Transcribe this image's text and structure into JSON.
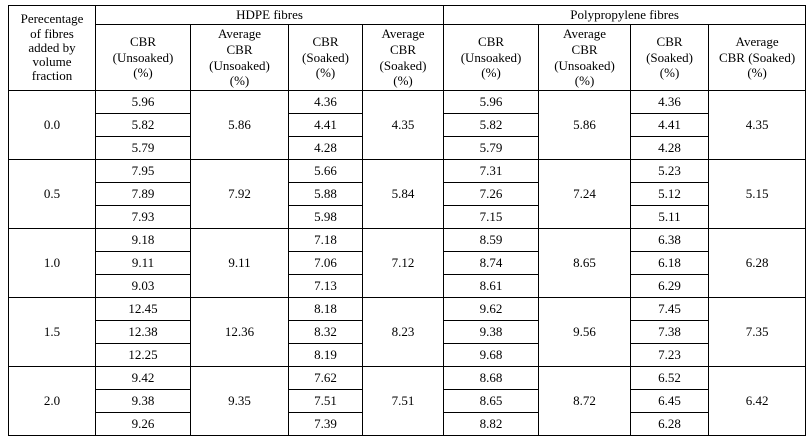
{
  "table": {
    "corner_header": [
      "Perecentage",
      "of fibres",
      "added by",
      "volume",
      "fraction"
    ],
    "group_headers": [
      "HDPE fibres",
      "Polypropylene fibres"
    ],
    "sub_headers": [
      [
        "CBR",
        "(Unsoaked)",
        "(%)"
      ],
      [
        "Average",
        "CBR",
        "(Unsoaked)",
        "(%)"
      ],
      [
        "CBR",
        "(Soaked)",
        "(%)"
      ],
      [
        "Average",
        "CBR",
        "(Soaked)",
        "(%)"
      ],
      [
        "CBR",
        "(Unsoaked)",
        "(%)"
      ],
      [
        "Average",
        "CBR",
        "(Unsoaked)",
        "(%)"
      ],
      [
        "CBR",
        "(Soaked)",
        "(%)"
      ],
      [
        "Average",
        "CBR (Soaked)",
        "(%)"
      ]
    ],
    "rows": [
      {
        "percentage": "0.0",
        "hdpe": {
          "unsoaked": [
            "5.96",
            "5.82",
            "5.79"
          ],
          "avg_unsoaked": "5.86",
          "soaked": [
            "4.36",
            "4.41",
            "4.28"
          ],
          "avg_soaked": "4.35"
        },
        "pp": {
          "unsoaked": [
            "5.96",
            "5.82",
            "5.79"
          ],
          "avg_unsoaked": "5.86",
          "soaked": [
            "4.36",
            "4.41",
            "4.28"
          ],
          "avg_soaked": "4.35"
        }
      },
      {
        "percentage": "0.5",
        "hdpe": {
          "unsoaked": [
            "7.95",
            "7.89",
            "7.93"
          ],
          "avg_unsoaked": "7.92",
          "soaked": [
            "5.66",
            "5.88",
            "5.98"
          ],
          "avg_soaked": "5.84"
        },
        "pp": {
          "unsoaked": [
            "7.31",
            "7.26",
            "7.15"
          ],
          "avg_unsoaked": "7.24",
          "soaked": [
            "5.23",
            "5.12",
            "5.11"
          ],
          "avg_soaked": "5.15"
        }
      },
      {
        "percentage": "1.0",
        "hdpe": {
          "unsoaked": [
            "9.18",
            "9.11",
            "9.03"
          ],
          "avg_unsoaked": "9.11",
          "soaked": [
            "7.18",
            "7.06",
            "7.13"
          ],
          "avg_soaked": "7.12"
        },
        "pp": {
          "unsoaked": [
            "8.59",
            "8.74",
            "8.61"
          ],
          "avg_unsoaked": "8.65",
          "soaked": [
            "6.38",
            "6.18",
            "6.29"
          ],
          "avg_soaked": "6.28"
        }
      },
      {
        "percentage": "1.5",
        "hdpe": {
          "unsoaked": [
            "12.45",
            "12.38",
            "12.25"
          ],
          "avg_unsoaked": "12.36",
          "soaked": [
            "8.18",
            "8.32",
            "8.19"
          ],
          "avg_soaked": "8.23"
        },
        "pp": {
          "unsoaked": [
            "9.62",
            "9.38",
            "9.68"
          ],
          "avg_unsoaked": "9.56",
          "soaked": [
            "7.45",
            "7.38",
            "7.23"
          ],
          "avg_soaked": "7.35"
        }
      },
      {
        "percentage": "2.0",
        "hdpe": {
          "unsoaked": [
            "9.42",
            "9.38",
            "9.26"
          ],
          "avg_unsoaked": "9.35",
          "soaked": [
            "7.62",
            "7.51",
            "7.39"
          ],
          "avg_soaked": "7.51"
        },
        "pp": {
          "unsoaked": [
            "8.68",
            "8.65",
            "8.82"
          ],
          "avg_unsoaked": "8.72",
          "soaked": [
            "6.52",
            "6.45",
            "6.28"
          ],
          "avg_soaked": "6.42"
        }
      }
    ]
  }
}
